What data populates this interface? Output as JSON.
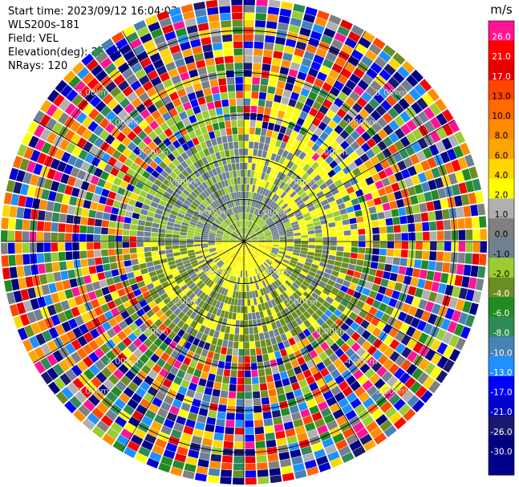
{
  "header": {
    "start_time": "Start time: 2023/09/12 16:04:03",
    "instrument": "WLS200s-181",
    "field": "Field: VEL",
    "elevation": "Elevation(deg): 35.30",
    "nrays": "NRays: 120"
  },
  "chart_data": {
    "type": "heatmap",
    "subtype": "polar-ppi",
    "field": "VEL",
    "units": "m/s",
    "n_rays": 120,
    "elevation_deg": 35.3,
    "range_rings_km": [
      1.0,
      2.0,
      3.0,
      4.0,
      5.0
    ],
    "range_ring_labels": [
      "1.00km",
      "2.00km",
      "3.00km",
      "4.00km",
      "5.00km"
    ],
    "grid": true,
    "colorbar": {
      "label": "m/s",
      "placement": "right",
      "ticks": [
        "26.0",
        "21.0",
        "17.0",
        "13.0",
        "10.0",
        "8.0",
        "6.0",
        "4.0",
        "2.0",
        "1.0",
        "0.0",
        "-1.0",
        "-2.0",
        "-4.0",
        "-6.0",
        "-8.0",
        "-10.0",
        "-13.0",
        "-17.0",
        "-21.0",
        "-26.0",
        "-30.0"
      ],
      "colors": [
        "#ff1493",
        "#ff0000",
        "#e60000",
        "#ff4500",
        "#ff6a00",
        "#ff8c00",
        "#ffa500",
        "#ffd700",
        "#ffff00",
        "#b0b0b0",
        "#808080",
        "#708090",
        "#9acd32",
        "#6b8e23",
        "#228b22",
        "#2e8b57",
        "#4682b4",
        "#1e90ff",
        "#0000ff",
        "#0000cd",
        "#191970",
        "#000080",
        "#00008b"
      ]
    }
  }
}
